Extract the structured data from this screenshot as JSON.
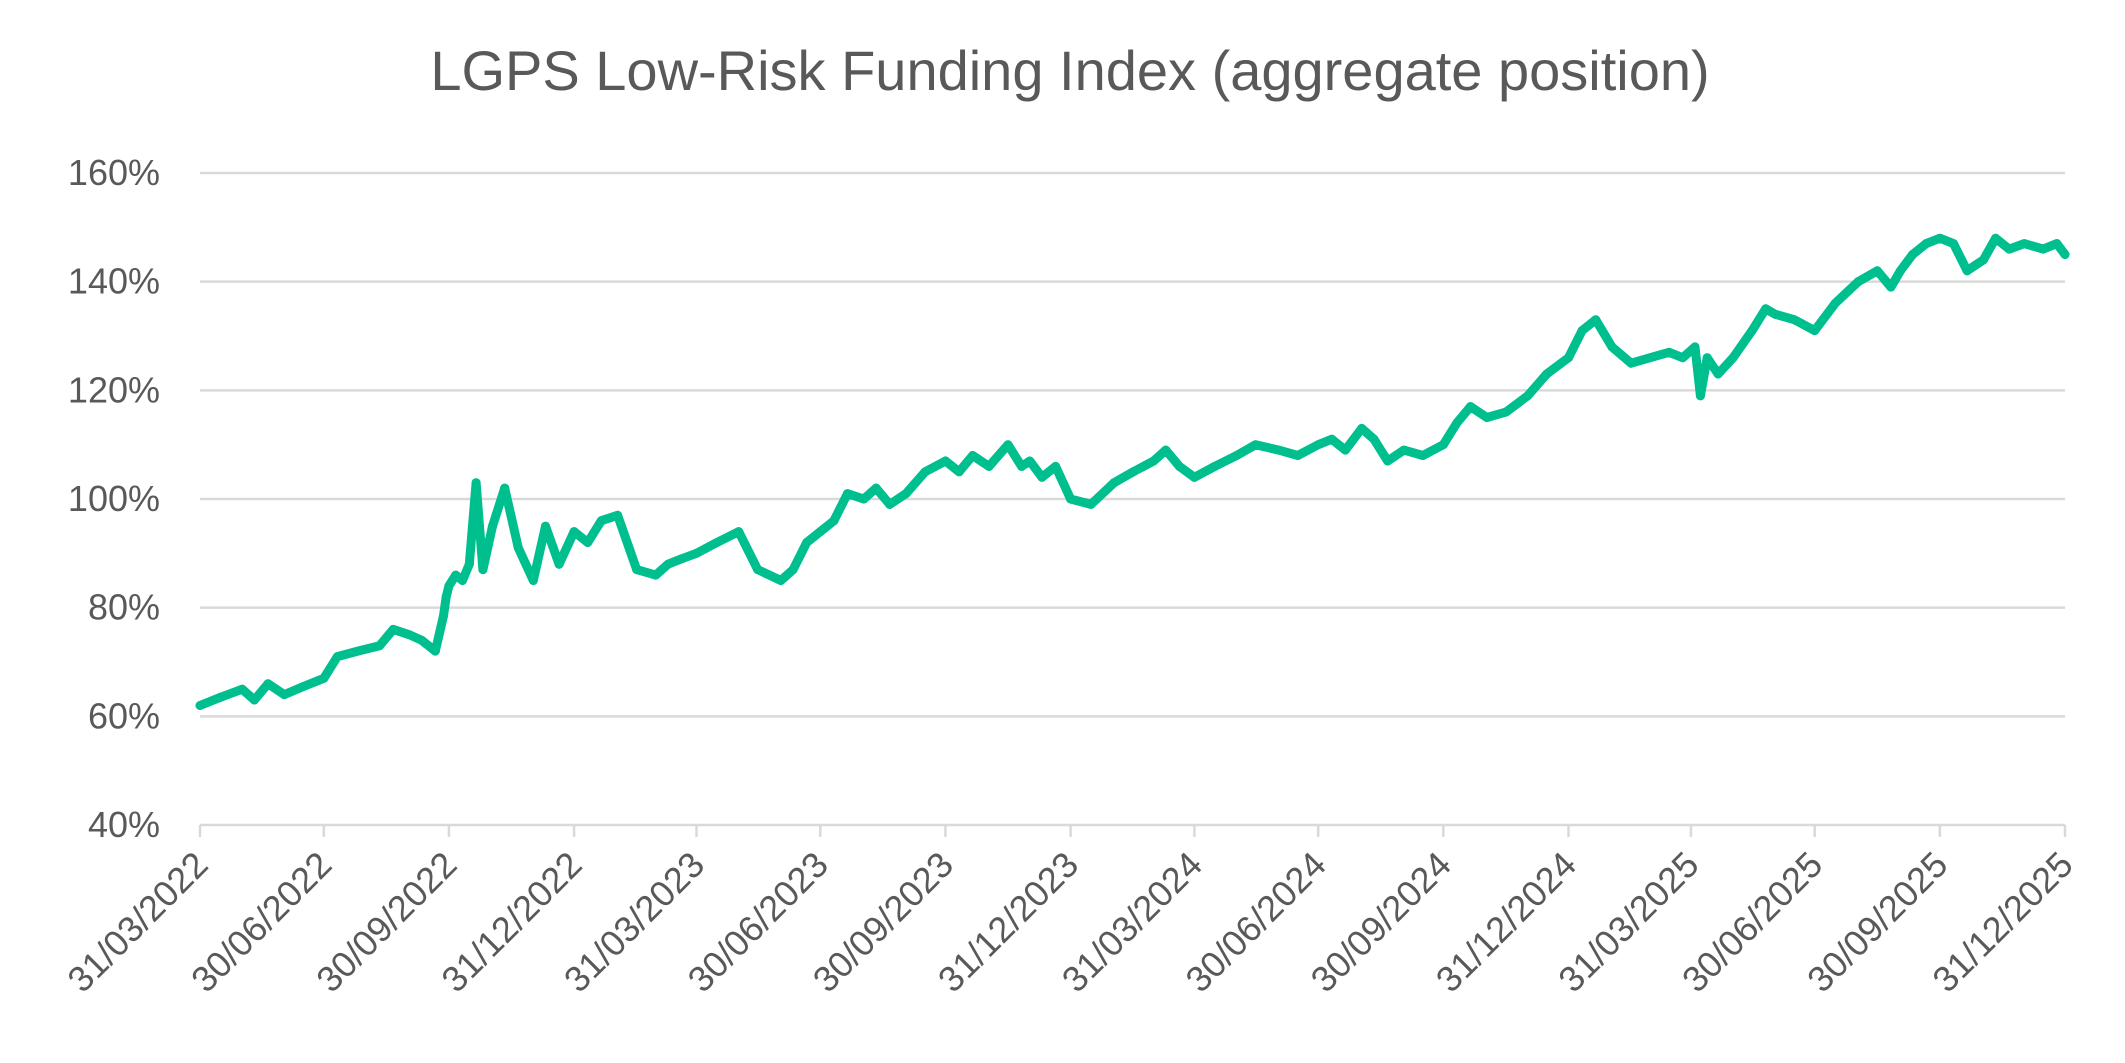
{
  "colors": {
    "series": "#00bf8f",
    "text": "#595959",
    "grid": "#d9d9d9"
  },
  "chart_data": {
    "type": "line",
    "title": "LGPS Low-Risk Funding Index (aggregate position)",
    "xlabel": "",
    "ylabel": "",
    "ylim": [
      0.4,
      1.6
    ],
    "xlim": [
      "2022-03-31",
      "2025-12-31"
    ],
    "y_ticks": [
      0.4,
      0.6,
      0.8,
      1.0,
      1.2,
      1.4,
      1.6
    ],
    "y_tick_labels": [
      "40%",
      "60%",
      "80%",
      "100%",
      "120%",
      "140%",
      "160%"
    ],
    "x_ticks": [
      "2022-03-31",
      "2022-06-30",
      "2022-09-30",
      "2022-12-31",
      "2023-03-31",
      "2023-06-30",
      "2023-09-30",
      "2023-12-31",
      "2024-03-31",
      "2024-06-30",
      "2024-09-30",
      "2024-12-31",
      "2025-03-31",
      "2025-06-30",
      "2025-09-30",
      "2025-12-31"
    ],
    "x_tick_labels": [
      "31/03/2022",
      "30/06/2022",
      "30/09/2022",
      "31/12/2022",
      "31/03/2023",
      "30/06/2023",
      "30/09/2023",
      "31/12/2023",
      "31/03/2024",
      "30/06/2024",
      "30/09/2024",
      "31/12/2024",
      "31/03/2025",
      "30/06/2025",
      "30/09/2025",
      "31/12/2025"
    ],
    "grid": true,
    "legend": "none",
    "series": [
      {
        "x": [
          "2022-03-31",
          "2022-04-15",
          "2022-05-01",
          "2022-05-10",
          "2022-05-20",
          "2022-06-01",
          "2022-06-15",
          "2022-06-30",
          "2022-07-10",
          "2022-07-25",
          "2022-08-10",
          "2022-08-20",
          "2022-09-01",
          "2022-09-10",
          "2022-09-20",
          "2022-09-26",
          "2022-09-28",
          "2022-09-30",
          "2022-10-05",
          "2022-10-10",
          "2022-10-15",
          "2022-10-20",
          "2022-10-25",
          "2022-11-01",
          "2022-11-10",
          "2022-11-20",
          "2022-12-01",
          "2022-12-10",
          "2022-12-20",
          "2022-12-31",
          "2023-01-10",
          "2023-01-20",
          "2023-02-01",
          "2023-02-15",
          "2023-03-01",
          "2023-03-10",
          "2023-03-20",
          "2023-03-31",
          "2023-04-15",
          "2023-05-01",
          "2023-05-15",
          "2023-06-01",
          "2023-06-10",
          "2023-06-20",
          "2023-06-30",
          "2023-07-10",
          "2023-07-20",
          "2023-08-01",
          "2023-08-10",
          "2023-08-20",
          "2023-09-01",
          "2023-09-15",
          "2023-09-30",
          "2023-10-10",
          "2023-10-20",
          "2023-11-01",
          "2023-11-15",
          "2023-11-25",
          "2023-12-01",
          "2023-12-10",
          "2023-12-20",
          "2023-12-31",
          "2024-01-15",
          "2024-02-01",
          "2024-02-15",
          "2024-03-01",
          "2024-03-10",
          "2024-03-20",
          "2024-03-31",
          "2024-04-15",
          "2024-05-01",
          "2024-05-15",
          "2024-06-01",
          "2024-06-15",
          "2024-06-30",
          "2024-07-10",
          "2024-07-20",
          "2024-08-01",
          "2024-08-10",
          "2024-08-20",
          "2024-09-01",
          "2024-09-15",
          "2024-09-30",
          "2024-10-10",
          "2024-10-20",
          "2024-11-01",
          "2024-11-15",
          "2024-12-01",
          "2024-12-15",
          "2024-12-31",
          "2025-01-10",
          "2025-01-20",
          "2025-02-01",
          "2025-02-15",
          "2025-03-01",
          "2025-03-15",
          "2025-03-25",
          "2025-04-03",
          "2025-04-07",
          "2025-04-12",
          "2025-04-20",
          "2025-05-01",
          "2025-05-15",
          "2025-05-25",
          "2025-06-01",
          "2025-06-15",
          "2025-06-30",
          "2025-07-15",
          "2025-08-01",
          "2025-08-15",
          "2025-08-25",
          "2025-09-01",
          "2025-09-10",
          "2025-09-20",
          "2025-09-30",
          "2025-10-10",
          "2025-10-20",
          "2025-11-01",
          "2025-11-10",
          "2025-11-20",
          "2025-12-01",
          "2025-12-15",
          "2025-12-25",
          "2025-12-31"
        ],
        "values": [
          0.62,
          0.635,
          0.65,
          0.63,
          0.66,
          0.64,
          0.655,
          0.67,
          0.71,
          0.72,
          0.73,
          0.76,
          0.75,
          0.74,
          0.72,
          0.785,
          0.82,
          0.84,
          0.86,
          0.85,
          0.88,
          1.03,
          0.87,
          0.95,
          1.02,
          0.91,
          0.85,
          0.95,
          0.88,
          0.94,
          0.92,
          0.96,
          0.97,
          0.87,
          0.86,
          0.88,
          0.89,
          0.9,
          0.92,
          0.94,
          0.87,
          0.85,
          0.87,
          0.92,
          0.94,
          0.96,
          1.01,
          1.0,
          1.02,
          0.99,
          1.01,
          1.05,
          1.07,
          1.05,
          1.08,
          1.06,
          1.1,
          1.06,
          1.07,
          1.04,
          1.06,
          1.0,
          0.99,
          1.03,
          1.05,
          1.07,
          1.09,
          1.06,
          1.04,
          1.06,
          1.08,
          1.1,
          1.09,
          1.08,
          1.1,
          1.11,
          1.09,
          1.13,
          1.11,
          1.07,
          1.09,
          1.08,
          1.1,
          1.14,
          1.17,
          1.15,
          1.16,
          1.19,
          1.23,
          1.26,
          1.31,
          1.33,
          1.28,
          1.25,
          1.26,
          1.27,
          1.26,
          1.28,
          1.19,
          1.26,
          1.23,
          1.26,
          1.31,
          1.35,
          1.34,
          1.33,
          1.31,
          1.36,
          1.4,
          1.42,
          1.39,
          1.42,
          1.45,
          1.47,
          1.48,
          1.47,
          1.42,
          1.44,
          1.48,
          1.46,
          1.47,
          1.46,
          1.47,
          1.45
        ]
      }
    ]
  }
}
